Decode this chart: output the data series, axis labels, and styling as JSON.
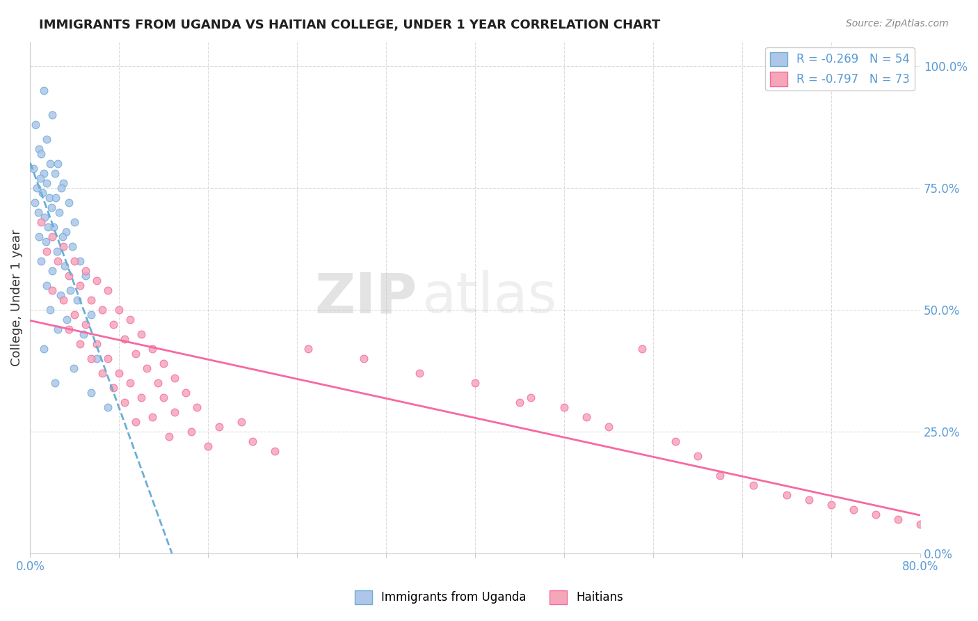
{
  "title": "IMMIGRANTS FROM UGANDA VS HAITIAN COLLEGE, UNDER 1 YEAR CORRELATION CHART",
  "source": "Source: ZipAtlas.com",
  "ylabel": "College, Under 1 year",
  "xlim": [
    0.0,
    80.0
  ],
  "ylim": [
    0.0,
    105.0
  ],
  "yticks_right": [
    0.0,
    25.0,
    50.0,
    75.0,
    100.0
  ],
  "ytick_labels_right": [
    "0.0%",
    "25.0%",
    "50.0%",
    "75.0%",
    "100.0%"
  ],
  "legend_label1": "Immigrants from Uganda",
  "legend_label2": "Haitians",
  "r1": -0.269,
  "n1": 54,
  "r2": -0.797,
  "n2": 73,
  "color_uganda": "#aec6e8",
  "color_haitian": "#f4a7b9",
  "line_color_uganda": "#6aaed6",
  "line_color_haitian": "#f768a1",
  "watermark_zip": "ZIP",
  "watermark_atlas": "atlas",
  "background_color": "#ffffff",
  "grid_color": "#cccccc",
  "scatter_uganda": [
    [
      1.2,
      95
    ],
    [
      2.0,
      90
    ],
    [
      0.5,
      88
    ],
    [
      1.5,
      85
    ],
    [
      0.8,
      83
    ],
    [
      1.0,
      82
    ],
    [
      2.5,
      80
    ],
    [
      1.8,
      80
    ],
    [
      0.3,
      79
    ],
    [
      1.2,
      78
    ],
    [
      2.2,
      78
    ],
    [
      0.9,
      77
    ],
    [
      1.5,
      76
    ],
    [
      3.0,
      76
    ],
    [
      0.6,
      75
    ],
    [
      2.8,
      75
    ],
    [
      1.1,
      74
    ],
    [
      1.7,
      73
    ],
    [
      2.3,
      73
    ],
    [
      0.4,
      72
    ],
    [
      3.5,
      72
    ],
    [
      1.9,
      71
    ],
    [
      2.6,
      70
    ],
    [
      0.7,
      70
    ],
    [
      1.3,
      69
    ],
    [
      4.0,
      68
    ],
    [
      2.1,
      67
    ],
    [
      1.6,
      67
    ],
    [
      3.2,
      66
    ],
    [
      0.8,
      65
    ],
    [
      2.9,
      65
    ],
    [
      1.4,
      64
    ],
    [
      3.8,
      63
    ],
    [
      2.4,
      62
    ],
    [
      1.0,
      60
    ],
    [
      4.5,
      60
    ],
    [
      3.1,
      59
    ],
    [
      2.0,
      58
    ],
    [
      5.0,
      57
    ],
    [
      1.5,
      55
    ],
    [
      3.6,
      54
    ],
    [
      2.7,
      53
    ],
    [
      4.2,
      52
    ],
    [
      1.8,
      50
    ],
    [
      5.5,
      49
    ],
    [
      3.3,
      48
    ],
    [
      2.5,
      46
    ],
    [
      4.8,
      45
    ],
    [
      1.2,
      42
    ],
    [
      6.0,
      40
    ],
    [
      3.9,
      38
    ],
    [
      2.2,
      35
    ],
    [
      5.5,
      33
    ],
    [
      7.0,
      30
    ]
  ],
  "scatter_haitian": [
    [
      1.0,
      68
    ],
    [
      2.0,
      65
    ],
    [
      3.0,
      63
    ],
    [
      1.5,
      62
    ],
    [
      4.0,
      60
    ],
    [
      2.5,
      60
    ],
    [
      5.0,
      58
    ],
    [
      3.5,
      57
    ],
    [
      6.0,
      56
    ],
    [
      4.5,
      55
    ],
    [
      2.0,
      54
    ],
    [
      7.0,
      54
    ],
    [
      5.5,
      52
    ],
    [
      3.0,
      52
    ],
    [
      8.0,
      50
    ],
    [
      6.5,
      50
    ],
    [
      4.0,
      49
    ],
    [
      9.0,
      48
    ],
    [
      7.5,
      47
    ],
    [
      5.0,
      47
    ],
    [
      3.5,
      46
    ],
    [
      10.0,
      45
    ],
    [
      8.5,
      44
    ],
    [
      6.0,
      43
    ],
    [
      4.5,
      43
    ],
    [
      11.0,
      42
    ],
    [
      9.5,
      41
    ],
    [
      7.0,
      40
    ],
    [
      5.5,
      40
    ],
    [
      12.0,
      39
    ],
    [
      10.5,
      38
    ],
    [
      8.0,
      37
    ],
    [
      6.5,
      37
    ],
    [
      13.0,
      36
    ],
    [
      11.5,
      35
    ],
    [
      9.0,
      35
    ],
    [
      7.5,
      34
    ],
    [
      14.0,
      33
    ],
    [
      12.0,
      32
    ],
    [
      10.0,
      32
    ],
    [
      8.5,
      31
    ],
    [
      15.0,
      30
    ],
    [
      13.0,
      29
    ],
    [
      11.0,
      28
    ],
    [
      9.5,
      27
    ],
    [
      17.0,
      26
    ],
    [
      14.5,
      25
    ],
    [
      12.5,
      24
    ],
    [
      20.0,
      23
    ],
    [
      16.0,
      22
    ],
    [
      22.0,
      21
    ],
    [
      25.0,
      42
    ],
    [
      30.0,
      40
    ],
    [
      35.0,
      37
    ],
    [
      40.0,
      35
    ],
    [
      45.0,
      32
    ],
    [
      48.0,
      30
    ],
    [
      50.0,
      28
    ],
    [
      52.0,
      26
    ],
    [
      55.0,
      42
    ],
    [
      58.0,
      23
    ],
    [
      60.0,
      20
    ],
    [
      62.0,
      16
    ],
    [
      65.0,
      14
    ],
    [
      68.0,
      12
    ],
    [
      70.0,
      11
    ],
    [
      72.0,
      10
    ],
    [
      74.0,
      9
    ],
    [
      76.0,
      8
    ],
    [
      78.0,
      7
    ],
    [
      80.0,
      6
    ],
    [
      19.0,
      27
    ],
    [
      44.0,
      31
    ]
  ]
}
